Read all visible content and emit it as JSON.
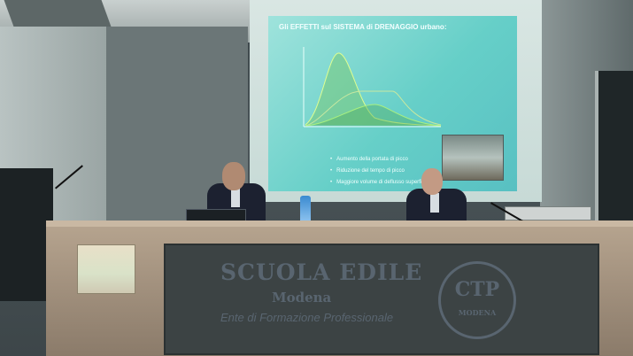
{
  "slide": {
    "title": "Gli EFFETTI sul SISTEMA di DRENAGGIO urbano:",
    "bullets": [
      "Aumento della portata di picco",
      "Riduzione del tempo di picco",
      "Maggiore volume di deflusso superficiale"
    ]
  },
  "sign": {
    "title": "SCUOLA EDILE",
    "city": "Modena",
    "subtitle": "Ente di Formazione Professionale",
    "logo_text": "CTP",
    "logo_sub": "MODENA"
  },
  "colors": {
    "slide_bg": "#66cfc8",
    "sign_bg": "#3c4344",
    "desk": "#b5a38e",
    "sign_text": "#596570"
  }
}
